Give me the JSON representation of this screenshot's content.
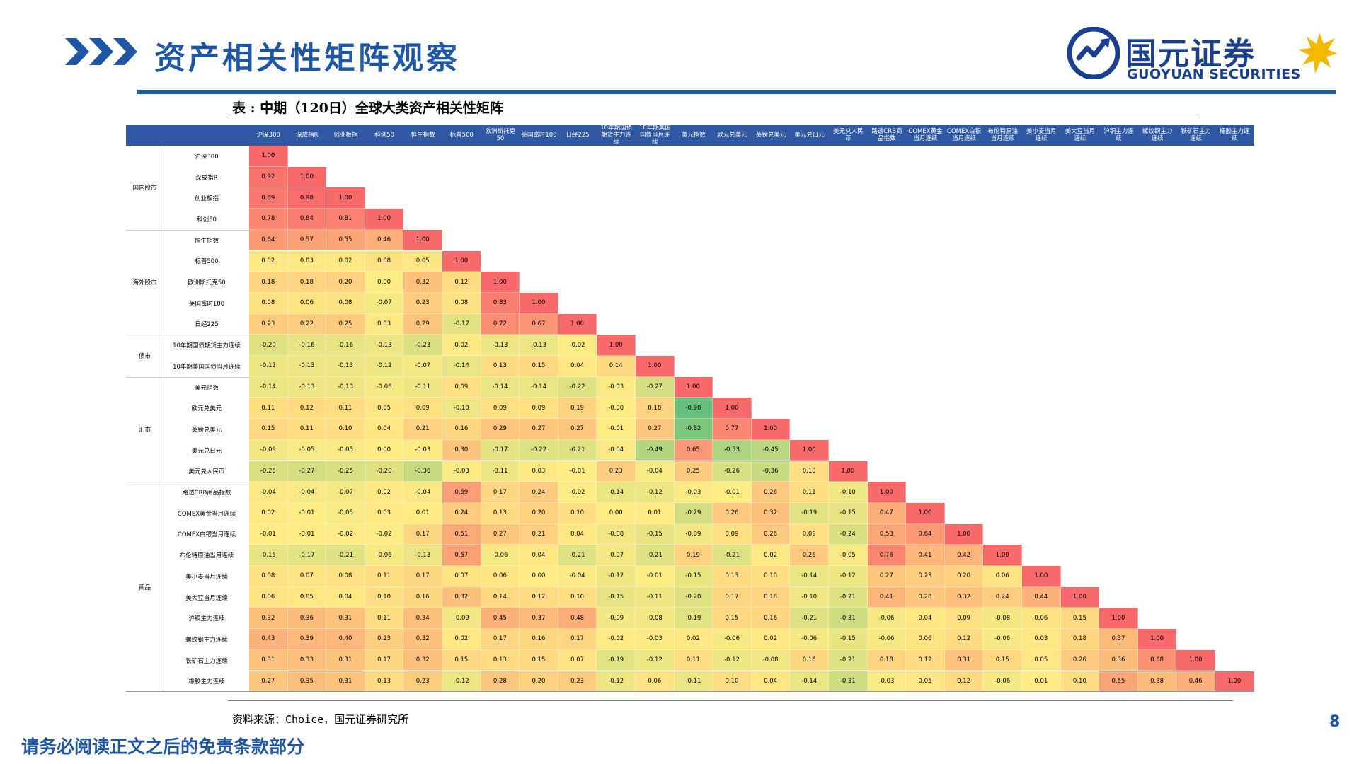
{
  "header": {
    "title": "资产相关性矩阵观察",
    "logo_cn": "国元证券",
    "logo_en": "GUOYUAN SECURITIES",
    "brand_color": "#1f56a6"
  },
  "table": {
    "caption": "表 : 中期（120日）全球大类资产相关性矩阵",
    "columns": [
      "沪深300",
      "深成指R",
      "创业板指",
      "科创50",
      "恒生指数",
      "标普500",
      "欧洲斯托克50",
      "英国富时100",
      "日经225",
      "10年期国债期货主力连续",
      "10年期美国国债当月连续",
      "美元指数",
      "欧元兑美元",
      "英镑兑美元",
      "美元兑日元",
      "美元兑人民币",
      "路透CRB商品指数",
      "COMEX黄金当月连续",
      "COMEX白银当月连续",
      "布伦特原油当月连续",
      "美小麦当月连续",
      "美大豆当月连续",
      "沪铜主力连续",
      "螺纹钢主力连续",
      "铁矿石主力连续",
      "橡胶主力连续"
    ],
    "groups": [
      {
        "label": "国内股市",
        "start": 0,
        "count": 4
      },
      {
        "label": "海外股市",
        "start": 4,
        "count": 5
      },
      {
        "label": "债市",
        "start": 9,
        "count": 2
      },
      {
        "label": "汇市",
        "start": 11,
        "count": 5
      },
      {
        "label": "商品",
        "start": 16,
        "count": 10
      }
    ],
    "rows": [
      [
        "1.00"
      ],
      [
        "0.92",
        "1.00"
      ],
      [
        "0.89",
        "0.98",
        "1.00"
      ],
      [
        "0.78",
        "0.84",
        "0.81",
        "1.00"
      ],
      [
        "0.64",
        "0.57",
        "0.55",
        "0.46",
        "1.00"
      ],
      [
        "0.02",
        "0.03",
        "0.02",
        "0.08",
        "0.05",
        "1.00"
      ],
      [
        "0.18",
        "0.18",
        "0.20",
        "0.00",
        "0.32",
        "0.12",
        "1.00"
      ],
      [
        "0.08",
        "0.06",
        "0.08",
        "-0.07",
        "0.23",
        "0.08",
        "0.83",
        "1.00"
      ],
      [
        "0.23",
        "0.22",
        "0.25",
        "0.03",
        "0.29",
        "-0.17",
        "0.72",
        "0.67",
        "1.00"
      ],
      [
        "-0.20",
        "-0.16",
        "-0.16",
        "-0.13",
        "-0.23",
        "0.02",
        "-0.13",
        "-0.13",
        "-0.02",
        "1.00"
      ],
      [
        "-0.12",
        "-0.13",
        "-0.13",
        "-0.12",
        "-0.07",
        "-0.14",
        "0.13",
        "0.15",
        "0.04",
        "0.14",
        "1.00"
      ],
      [
        "-0.14",
        "-0.13",
        "-0.13",
        "-0.06",
        "-0.11",
        "0.09",
        "-0.14",
        "-0.14",
        "-0.22",
        "-0.03",
        "-0.27",
        "1.00"
      ],
      [
        "0.11",
        "0.12",
        "0.11",
        "0.05",
        "0.09",
        "-0.10",
        "0.09",
        "0.09",
        "0.19",
        "-0.00",
        "0.18",
        "-0.98",
        "1.00"
      ],
      [
        "0.15",
        "0.11",
        "0.10",
        "0.04",
        "0.21",
        "0.16",
        "0.29",
        "0.27",
        "0.27",
        "-0.01",
        "0.27",
        "-0.82",
        "0.77",
        "1.00"
      ],
      [
        "-0.09",
        "-0.05",
        "-0.05",
        "0.00",
        "-0.03",
        "0.30",
        "-0.17",
        "-0.22",
        "-0.21",
        "-0.04",
        "-0.49",
        "0.65",
        "-0.53",
        "-0.45",
        "1.00"
      ],
      [
        "-0.25",
        "-0.27",
        "-0.25",
        "-0.20",
        "-0.36",
        "-0.03",
        "-0.11",
        "0.03",
        "-0.01",
        "0.23",
        "-0.04",
        "0.25",
        "-0.26",
        "-0.36",
        "0.10",
        "1.00"
      ],
      [
        "-0.04",
        "-0.04",
        "-0.07",
        "0.02",
        "-0.04",
        "0.59",
        "0.17",
        "0.24",
        "-0.02",
        "-0.14",
        "-0.12",
        "-0.03",
        "-0.01",
        "0.26",
        "0.11",
        "-0.10",
        "1.00"
      ],
      [
        "0.02",
        "-0.01",
        "-0.05",
        "0.03",
        "0.01",
        "0.24",
        "0.13",
        "0.20",
        "0.10",
        "0.00",
        "0.01",
        "-0.29",
        "0.26",
        "0.32",
        "-0.19",
        "-0.15",
        "0.47",
        "1.00"
      ],
      [
        "-0.01",
        "-0.01",
        "-0.02",
        "-0.02",
        "0.17",
        "0.51",
        "0.27",
        "0.21",
        "0.04",
        "-0.08",
        "-0.15",
        "-0.09",
        "0.09",
        "0.26",
        "0.09",
        "-0.24",
        "0.53",
        "0.64",
        "1.00"
      ],
      [
        "-0.15",
        "-0.17",
        "-0.21",
        "-0.06",
        "-0.13",
        "0.57",
        "-0.06",
        "0.04",
        "-0.21",
        "-0.07",
        "-0.21",
        "0.19",
        "-0.21",
        "0.02",
        "0.26",
        "-0.05",
        "0.76",
        "0.41",
        "0.42",
        "1.00"
      ],
      [
        "0.08",
        "0.07",
        "0.08",
        "0.11",
        "0.17",
        "0.07",
        "0.06",
        "0.00",
        "-0.04",
        "-0.12",
        "-0.01",
        "-0.15",
        "0.13",
        "0.10",
        "-0.14",
        "-0.12",
        "0.27",
        "0.23",
        "0.20",
        "0.06",
        "1.00"
      ],
      [
        "0.06",
        "0.05",
        "0.04",
        "0.10",
        "0.16",
        "0.32",
        "0.14",
        "0.12",
        "0.10",
        "-0.15",
        "-0.11",
        "-0.20",
        "0.17",
        "0.18",
        "-0.10",
        "-0.21",
        "0.41",
        "0.28",
        "0.32",
        "0.24",
        "0.44",
        "1.00"
      ],
      [
        "0.32",
        "0.36",
        "0.31",
        "0.11",
        "0.34",
        "-0.09",
        "0.45",
        "0.37",
        "0.48",
        "-0.09",
        "-0.08",
        "-0.19",
        "0.15",
        "0.16",
        "-0.21",
        "-0.31",
        "-0.06",
        "0.04",
        "0.09",
        "-0.08",
        "0.06",
        "0.15",
        "1.00"
      ],
      [
        "0.43",
        "0.39",
        "0.40",
        "0.23",
        "0.32",
        "0.02",
        "0.17",
        "0.16",
        "0.17",
        "-0.02",
        "-0.03",
        "0.02",
        "-0.06",
        "0.02",
        "-0.06",
        "-0.15",
        "-0.06",
        "0.06",
        "0.12",
        "-0.06",
        "0.03",
        "0.18",
        "0.37",
        "1.00"
      ],
      [
        "0.31",
        "0.33",
        "0.31",
        "0.17",
        "0.32",
        "0.15",
        "0.13",
        "0.15",
        "0.07",
        "-0.19",
        "-0.12",
        "0.11",
        "-0.12",
        "-0.08",
        "0.16",
        "-0.21",
        "0.18",
        "0.12",
        "0.31",
        "0.15",
        "0.05",
        "0.26",
        "0.36",
        "0.68",
        "1.00"
      ],
      [
        "0.27",
        "0.35",
        "0.31",
        "0.13",
        "0.23",
        "-0.12",
        "0.28",
        "0.20",
        "0.23",
        "-0.12",
        "0.06",
        "-0.11",
        "0.10",
        "0.04",
        "-0.14",
        "-0.31",
        "-0.03",
        "0.05",
        "0.12",
        "-0.06",
        "0.01",
        "0.10",
        "0.55",
        "0.38",
        "0.46",
        "1.00"
      ]
    ],
    "colors": {
      "header_bg": "#2f5aa3",
      "positive": "#f8696b",
      "neutral": "#ffeb84",
      "negative": "#63be7b"
    }
  },
  "footer": {
    "source": "资料来源：Choice，国元证券研究所",
    "page_number": "8",
    "disclaimer": "请务必阅读正文之后的免责条款部分"
  }
}
